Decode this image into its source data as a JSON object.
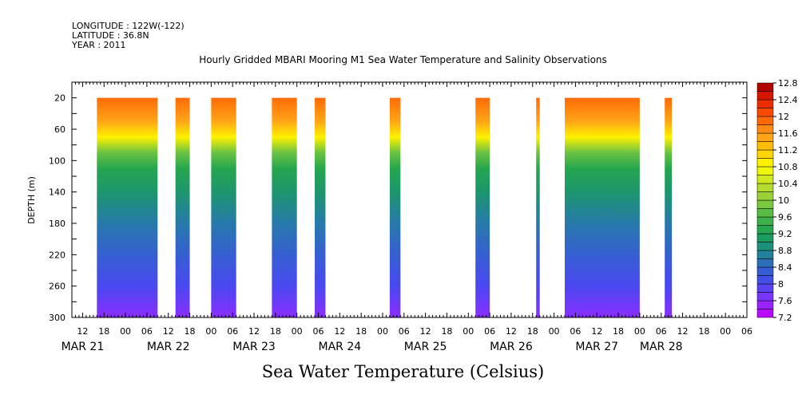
{
  "header": {
    "longitude": "LONGITUDE : 122W(-122)",
    "latitude": "LATITUDE : 36.8N",
    "year": "YEAR : 2011"
  },
  "chart_data": {
    "type": "heatmap",
    "title": "Hourly Gridded MBARI Mooring M1 Sea Water Temperature and Salinity Observations",
    "xlabel": "Sea Water Temperature (Celsius)",
    "ylabel": "DEPTH (m)",
    "x_unit": "hours since MAR 21 00",
    "xlim": [
      9,
      198
    ],
    "ylim": [
      0,
      300
    ],
    "y_reversed": true,
    "y_ticks": [
      20,
      60,
      100,
      140,
      180,
      220,
      260,
      300
    ],
    "hour_tick_labels": [
      {
        "t": 12,
        "label": "12"
      },
      {
        "t": 18,
        "label": "18"
      },
      {
        "t": 24,
        "label": "00"
      },
      {
        "t": 30,
        "label": "06"
      },
      {
        "t": 36,
        "label": "12"
      },
      {
        "t": 42,
        "label": "18"
      },
      {
        "t": 48,
        "label": "00"
      },
      {
        "t": 54,
        "label": "06"
      },
      {
        "t": 60,
        "label": "12"
      },
      {
        "t": 66,
        "label": "18"
      },
      {
        "t": 72,
        "label": "00"
      },
      {
        "t": 78,
        "label": "06"
      },
      {
        "t": 84,
        "label": "12"
      },
      {
        "t": 90,
        "label": "18"
      },
      {
        "t": 96,
        "label": "00"
      },
      {
        "t": 102,
        "label": "06"
      },
      {
        "t": 108,
        "label": "12"
      },
      {
        "t": 114,
        "label": "18"
      },
      {
        "t": 120,
        "label": "00"
      },
      {
        "t": 126,
        "label": "06"
      },
      {
        "t": 132,
        "label": "12"
      },
      {
        "t": 138,
        "label": "18"
      },
      {
        "t": 144,
        "label": "00"
      },
      {
        "t": 150,
        "label": "06"
      },
      {
        "t": 156,
        "label": "12"
      },
      {
        "t": 162,
        "label": "18"
      },
      {
        "t": 168,
        "label": "00"
      },
      {
        "t": 174,
        "label": "06"
      },
      {
        "t": 180,
        "label": "12"
      },
      {
        "t": 186,
        "label": "18"
      },
      {
        "t": 192,
        "label": "00"
      },
      {
        "t": 198,
        "label": "06"
      }
    ],
    "day_labels": [
      {
        "t": 12,
        "label": "MAR 21"
      },
      {
        "t": 36,
        "label": "MAR 22"
      },
      {
        "t": 60,
        "label": "MAR 23"
      },
      {
        "t": 84,
        "label": "MAR 24"
      },
      {
        "t": 108,
        "label": "MAR 25"
      },
      {
        "t": 132,
        "label": "MAR 26"
      },
      {
        "t": 156,
        "label": "MAR 27"
      },
      {
        "t": 174,
        "label": "MAR 28"
      }
    ],
    "colorbar": {
      "min": 7.2,
      "max": 12.8,
      "step": 0.2,
      "labels": [
        "12.8",
        "12.4",
        "12",
        "11.6",
        "11.2",
        "10.8",
        "10.4",
        "10",
        "9.6",
        "9.2",
        "8.8",
        "8.4",
        "8",
        "7.6",
        "7.2"
      ]
    },
    "data_blocks": [
      {
        "t_start": 16,
        "t_end": 33
      },
      {
        "t_start": 38,
        "t_end": 42
      },
      {
        "t_start": 48,
        "t_end": 55
      },
      {
        "t_start": 65,
        "t_end": 72
      },
      {
        "t_start": 77,
        "t_end": 80
      },
      {
        "t_start": 98,
        "t_end": 101
      },
      {
        "t_start": 122,
        "t_end": 126
      },
      {
        "t_start": 139,
        "t_end": 140
      },
      {
        "t_start": 147,
        "t_end": 168
      },
      {
        "t_start": 175,
        "t_end": 177
      }
    ],
    "profile": [
      {
        "depth": 20,
        "temp": 11.9
      },
      {
        "depth": 50,
        "temp": 11.5
      },
      {
        "depth": 70,
        "temp": 10.9
      },
      {
        "depth": 90,
        "temp": 9.8
      },
      {
        "depth": 110,
        "temp": 9.3
      },
      {
        "depth": 140,
        "temp": 9.0
      },
      {
        "depth": 180,
        "temp": 8.6
      },
      {
        "depth": 220,
        "temp": 8.3
      },
      {
        "depth": 260,
        "temp": 8.0
      },
      {
        "depth": 300,
        "temp": 7.6
      }
    ]
  }
}
